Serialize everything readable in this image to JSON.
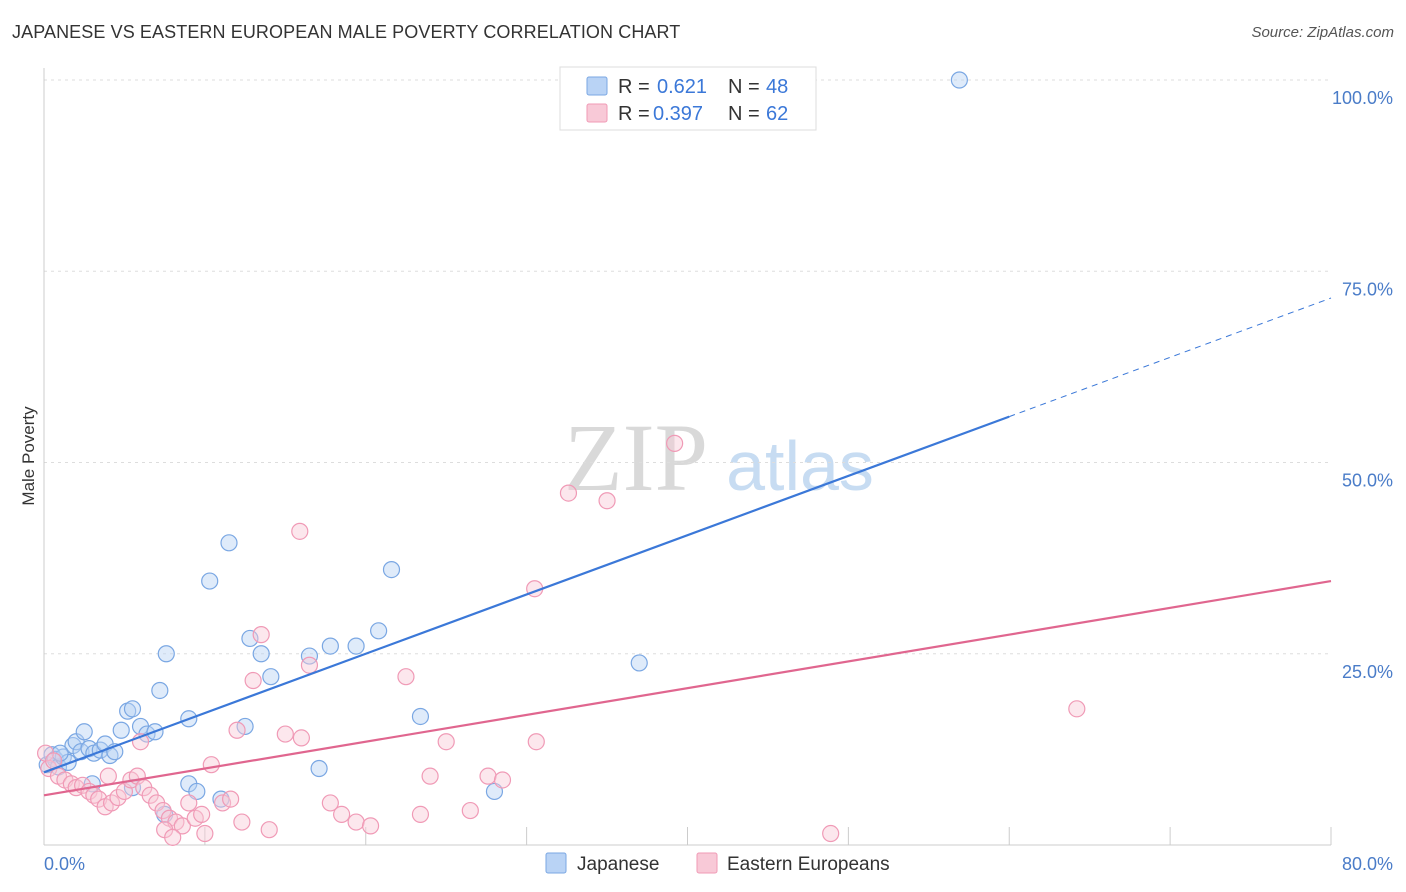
{
  "title": "JAPANESE VS EASTERN EUROPEAN MALE POVERTY CORRELATION CHART",
  "source": "Source: ZipAtlas.com",
  "watermark": {
    "zip": "ZIP",
    "atlas": "atlas"
  },
  "colors": {
    "blue": "#3b78d8",
    "blue_fill": "#b9d3f5",
    "blue_stroke": "#7aa7e3",
    "pink": "#e0668f",
    "pink_fill": "#f8c9d7",
    "pink_stroke": "#f09ab6",
    "grid": "#dddddd",
    "axis_text": "#4a7cc8"
  },
  "legend": {
    "rows": [
      {
        "r_label": "R =",
        "r_value": "0.621",
        "n_label": "N =",
        "n_value": "48"
      },
      {
        "r_label": "R =",
        "r_value": "0.397",
        "n_label": "N =",
        "n_value": "62"
      }
    ]
  },
  "chart_data": {
    "type": "scatter",
    "title": "JAPANESE VS EASTERN EUROPEAN MALE POVERTY CORRELATION CHART",
    "xlabel": "",
    "ylabel": "Male Poverty",
    "xlim": [
      0,
      80
    ],
    "ylim": [
      0,
      100
    ],
    "x_tick_labels": [
      "0.0%",
      "80.0%"
    ],
    "y_tick_labels": [
      "25.0%",
      "50.0%",
      "75.0%",
      "100.0%"
    ],
    "y_ticks": [
      25,
      50,
      75,
      100
    ],
    "legend_position": "top-center",
    "series": [
      {
        "name": "Japanese",
        "color": "#3b78d8",
        "trend": {
          "x0": 0,
          "y0": 9.5,
          "x1": 60,
          "y1": 56,
          "dash_to_x": 80,
          "dash_to_y": 71.5
        },
        "points": [
          [
            0.2,
            10.5
          ],
          [
            0.5,
            11.8
          ],
          [
            0.7,
            11.2
          ],
          [
            0.9,
            10.2
          ],
          [
            1.2,
            11.5
          ],
          [
            1.5,
            10.8
          ],
          [
            1.8,
            13.0
          ],
          [
            2.0,
            13.5
          ],
          [
            2.3,
            12.2
          ],
          [
            2.5,
            14.8
          ],
          [
            2.8,
            12.6
          ],
          [
            3.1,
            12.0
          ],
          [
            3.5,
            12.4
          ],
          [
            3.8,
            13.2
          ],
          [
            4.1,
            11.7
          ],
          [
            4.4,
            12.2
          ],
          [
            4.8,
            15.0
          ],
          [
            5.2,
            17.5
          ],
          [
            5.5,
            17.8
          ],
          [
            6.0,
            15.5
          ],
          [
            6.4,
            14.5
          ],
          [
            7.2,
            20.2
          ],
          [
            7.6,
            25.0
          ],
          [
            6.9,
            14.8
          ],
          [
            9.0,
            16.5
          ],
          [
            10.3,
            34.5
          ],
          [
            12.5,
            15.5
          ],
          [
            12.8,
            27.0
          ],
          [
            14.1,
            22.0
          ],
          [
            17.1,
            10.0
          ],
          [
            17.8,
            26.0
          ],
          [
            20.8,
            28.0
          ],
          [
            21.6,
            36.0
          ],
          [
            23.4,
            16.8
          ],
          [
            28.0,
            7.0
          ],
          [
            37.0,
            23.8
          ],
          [
            56.9,
            100.0
          ],
          [
            1.0,
            12.0
          ],
          [
            3.0,
            8.0
          ],
          [
            5.5,
            7.5
          ],
          [
            7.5,
            4.0
          ],
          [
            9.0,
            8.0
          ],
          [
            9.5,
            7.0
          ],
          [
            11.0,
            6.0
          ],
          [
            13.5,
            25.0
          ],
          [
            16.5,
            24.7
          ],
          [
            19.4,
            26.0
          ],
          [
            11.5,
            39.5
          ]
        ]
      },
      {
        "name": "Eastern Europeans",
        "color": "#e0668f",
        "trend": {
          "x0": 0,
          "y0": 6.5,
          "x1": 80,
          "y1": 34.5
        },
        "points": [
          [
            0.1,
            12.0
          ],
          [
            0.3,
            10.0
          ],
          [
            0.6,
            11.0
          ],
          [
            0.9,
            9.0
          ],
          [
            1.3,
            8.5
          ],
          [
            1.7,
            8.0
          ],
          [
            2.0,
            7.5
          ],
          [
            2.4,
            7.8
          ],
          [
            2.8,
            7.0
          ],
          [
            3.1,
            6.5
          ],
          [
            3.4,
            6.0
          ],
          [
            3.8,
            5.0
          ],
          [
            4.2,
            5.5
          ],
          [
            4.6,
            6.2
          ],
          [
            5.0,
            7.0
          ],
          [
            5.4,
            8.5
          ],
          [
            5.8,
            9.0
          ],
          [
            6.2,
            7.5
          ],
          [
            6.6,
            6.5
          ],
          [
            7.0,
            5.5
          ],
          [
            7.4,
            4.5
          ],
          [
            7.8,
            3.5
          ],
          [
            8.2,
            3.0
          ],
          [
            8.6,
            2.5
          ],
          [
            9.0,
            5.5
          ],
          [
            9.4,
            3.5
          ],
          [
            9.8,
            4.0
          ],
          [
            10.4,
            10.5
          ],
          [
            11.1,
            5.5
          ],
          [
            11.6,
            6.0
          ],
          [
            12.3,
            3.0
          ],
          [
            13.0,
            21.5
          ],
          [
            13.5,
            27.5
          ],
          [
            15.0,
            14.5
          ],
          [
            16.5,
            23.5
          ],
          [
            17.8,
            5.5
          ],
          [
            18.5,
            4.0
          ],
          [
            19.4,
            3.0
          ],
          [
            20.3,
            2.5
          ],
          [
            22.5,
            22.0
          ],
          [
            23.4,
            4.0
          ],
          [
            25.0,
            13.5
          ],
          [
            27.6,
            9.0
          ],
          [
            28.5,
            8.5
          ],
          [
            30.5,
            33.5
          ],
          [
            30.6,
            13.5
          ],
          [
            32.6,
            46.0
          ],
          [
            35.0,
            45.0
          ],
          [
            39.2,
            52.5
          ],
          [
            48.9,
            1.5
          ],
          [
            64.2,
            17.8
          ],
          [
            15.9,
            41.0
          ],
          [
            4.0,
            9.0
          ],
          [
            6.0,
            13.5
          ],
          [
            7.5,
            2.0
          ],
          [
            8.0,
            1.0
          ],
          [
            10.0,
            1.5
          ],
          [
            12.0,
            15.0
          ],
          [
            14.0,
            2.0
          ],
          [
            16.0,
            14.0
          ],
          [
            24.0,
            9.0
          ],
          [
            26.5,
            4.5
          ]
        ]
      }
    ]
  },
  "bottom_legend": {
    "items": [
      {
        "label": "Japanese"
      },
      {
        "label": "Eastern Europeans"
      }
    ]
  }
}
